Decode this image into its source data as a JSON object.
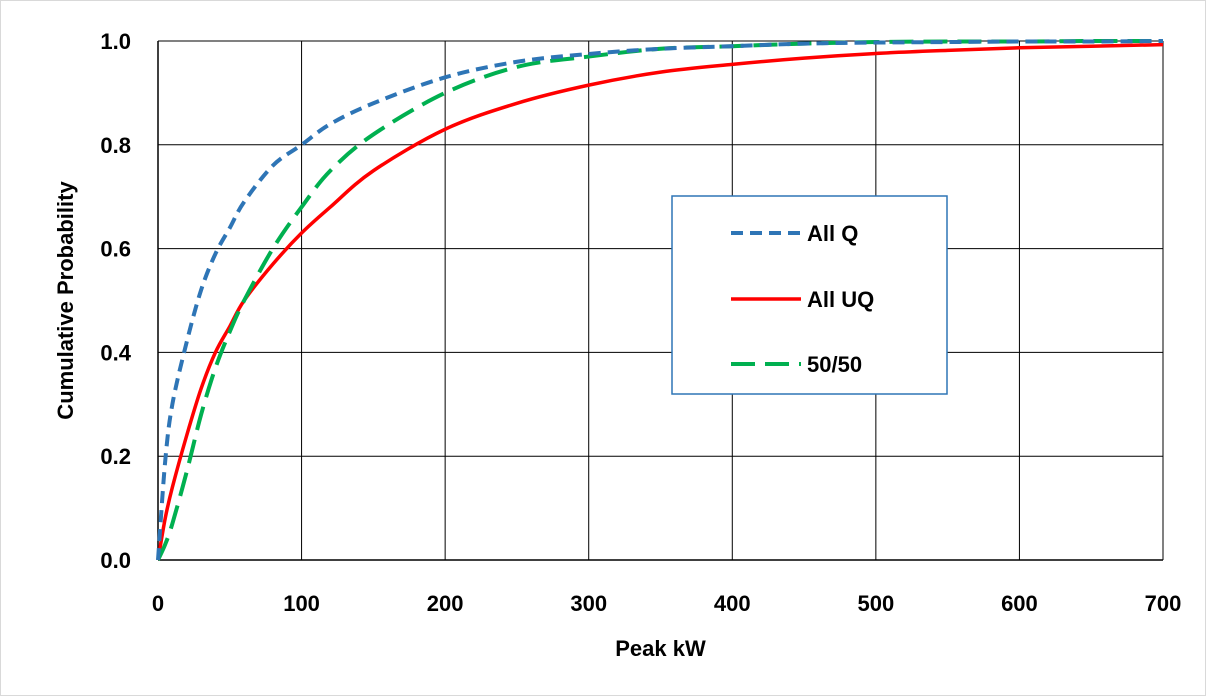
{
  "chart_data": {
    "type": "line",
    "title": "",
    "xlabel": "Peak kW",
    "ylabel": "Cumulative  Probability",
    "xlim": [
      0,
      700
    ],
    "ylim": [
      0,
      1.0
    ],
    "x_ticks": [
      0,
      100,
      200,
      300,
      400,
      500,
      600,
      700
    ],
    "x_tick_labels": [
      "0",
      "100",
      "200",
      "300",
      "400",
      "500",
      "600",
      "700"
    ],
    "y_ticks": [
      0,
      0.2,
      0.4,
      0.6,
      0.8,
      1.0
    ],
    "y_tick_labels": [
      "0.0",
      "0.2",
      "0.4",
      "0.6",
      "0.8",
      "1.0"
    ],
    "grid": true,
    "legend_position": "center-right",
    "series": [
      {
        "name": "All Q",
        "color": "#2E75B6",
        "line_style": "dashed-short",
        "x": [
          0,
          5,
          10,
          20,
          30,
          40,
          50,
          60,
          80,
          100,
          120,
          150,
          200,
          250,
          300,
          350,
          400,
          450,
          500,
          550,
          600,
          650,
          700
        ],
        "y": [
          0.0,
          0.19,
          0.3,
          0.42,
          0.52,
          0.59,
          0.64,
          0.69,
          0.76,
          0.8,
          0.84,
          0.88,
          0.93,
          0.96,
          0.975,
          0.985,
          0.99,
          0.995,
          0.997,
          0.998,
          0.999,
          0.999,
          1.0
        ]
      },
      {
        "name": "All UQ",
        "color": "#FF0000",
        "line_style": "solid",
        "x": [
          0,
          5,
          10,
          20,
          30,
          40,
          50,
          60,
          80,
          100,
          120,
          150,
          200,
          250,
          300,
          350,
          400,
          450,
          500,
          550,
          600,
          650,
          700
        ],
        "y": [
          0.0,
          0.08,
          0.14,
          0.24,
          0.33,
          0.4,
          0.45,
          0.5,
          0.57,
          0.63,
          0.68,
          0.75,
          0.83,
          0.88,
          0.915,
          0.94,
          0.955,
          0.967,
          0.976,
          0.982,
          0.987,
          0.99,
          0.993
        ]
      },
      {
        "name": "50/50",
        "color": "#00B050",
        "line_style": "dashed-long",
        "x": [
          0,
          5,
          10,
          20,
          30,
          40,
          50,
          60,
          80,
          100,
          120,
          150,
          200,
          250,
          300,
          350,
          400,
          450,
          500,
          550,
          600,
          650,
          700
        ],
        "y": [
          0.0,
          0.03,
          0.07,
          0.17,
          0.28,
          0.37,
          0.44,
          0.5,
          0.6,
          0.68,
          0.75,
          0.82,
          0.9,
          0.95,
          0.97,
          0.985,
          0.99,
          0.995,
          0.998,
          0.999,
          0.999,
          1.0,
          1.0
        ]
      }
    ]
  }
}
